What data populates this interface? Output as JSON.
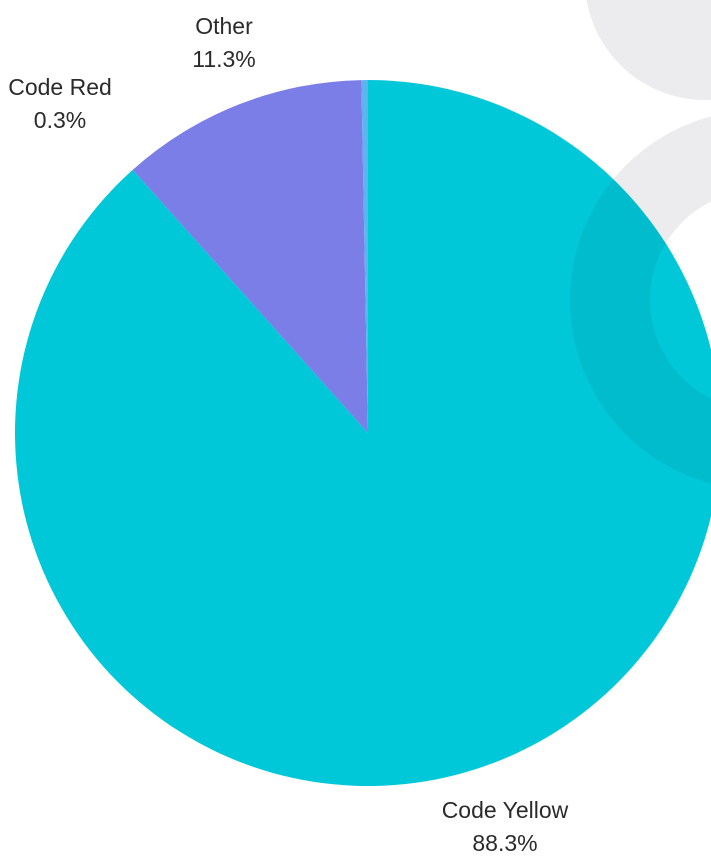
{
  "chart_data": {
    "type": "pie",
    "title": "",
    "slices": [
      {
        "label": "Code Yellow",
        "value": 88.3,
        "value_label": "88.3%",
        "color": "#00c8d9"
      },
      {
        "label": "Code Red",
        "value": 0.3,
        "value_label": "0.3%",
        "color": "#5fb3ef"
      },
      {
        "label": "Other",
        "value": 11.3,
        "value_label": "11.3%",
        "color": "#7b7ee6"
      }
    ],
    "legend": "none",
    "background_decoration_color": "#e9e9eb"
  }
}
